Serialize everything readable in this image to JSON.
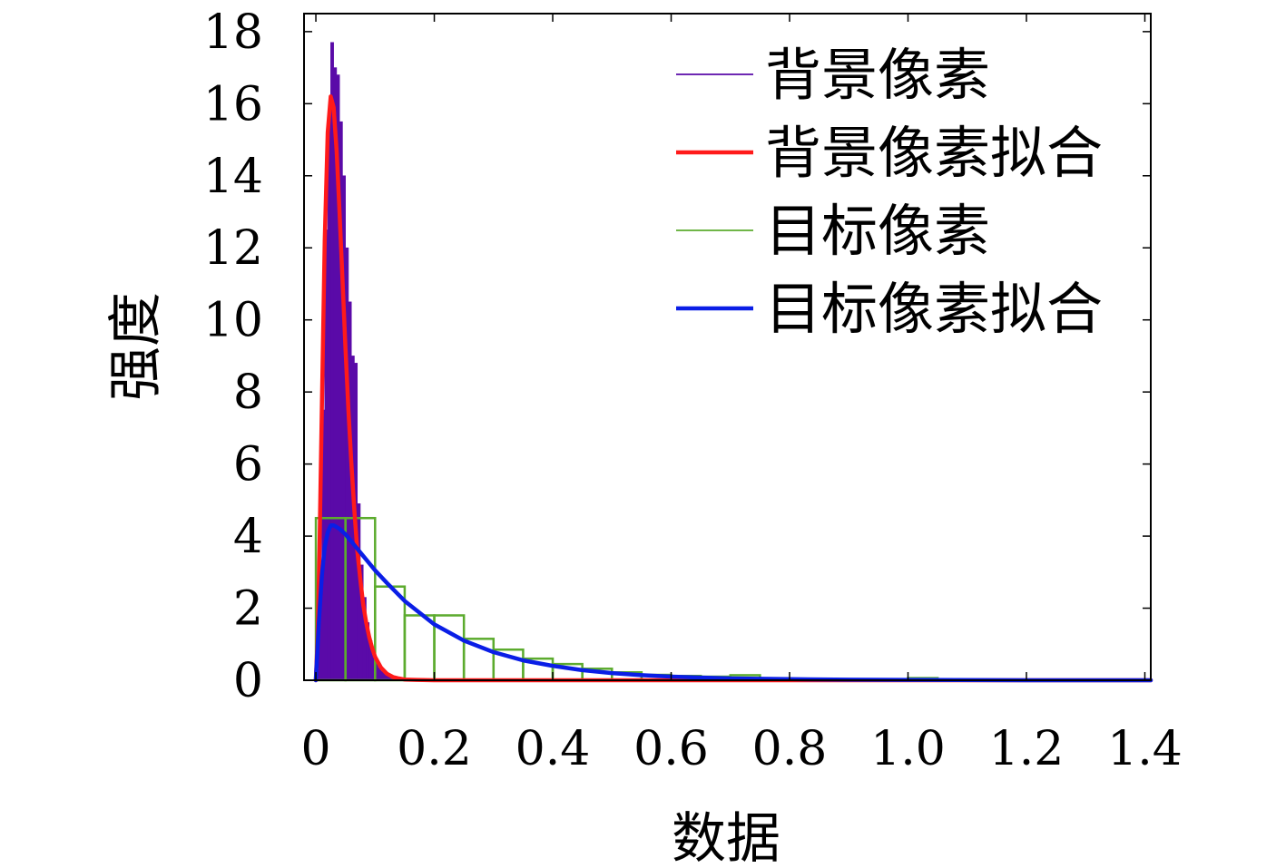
{
  "chart_data": {
    "type": "bar",
    "xlabel": "数据",
    "ylabel": "强度",
    "xlim": [
      -0.02,
      1.41
    ],
    "ylim": [
      0,
      18.5
    ],
    "xticks": [
      0,
      0.2,
      0.4,
      0.6,
      0.8,
      1.0,
      1.2,
      1.4
    ],
    "xtick_labels": [
      "0",
      "0.2",
      "0.4",
      "0.6",
      "0.8",
      "1.0",
      "1.2",
      "1.4"
    ],
    "yticks": [
      0,
      2,
      4,
      6,
      8,
      10,
      12,
      14,
      16,
      18
    ],
    "ytick_labels": [
      "0",
      "2",
      "4",
      "6",
      "8",
      "10",
      "12",
      "14",
      "16",
      "18"
    ],
    "grid": false,
    "legend_position": "top-right",
    "series": [
      {
        "name": "背景像素",
        "kind": "histogram",
        "color": "#5a0aa8",
        "bin_edges": [
          0.0,
          0.005,
          0.01,
          0.015,
          0.02,
          0.025,
          0.03,
          0.035,
          0.04,
          0.045,
          0.05,
          0.055,
          0.06,
          0.065,
          0.07,
          0.075,
          0.08,
          0.085,
          0.09,
          0.095,
          0.1,
          0.105,
          0.11,
          0.115,
          0.12,
          0.125,
          0.13,
          0.135,
          0.14,
          0.145,
          0.15
        ],
        "values": [
          0.3,
          2.5,
          7.5,
          12.5,
          15.5,
          17.7,
          17.0,
          16.8,
          15.5,
          14.0,
          12.0,
          10.5,
          9.0,
          8.8,
          4.9,
          3.2,
          2.3,
          1.6,
          1.1,
          0.7,
          0.5,
          0.35,
          0.25,
          0.18,
          0.12,
          0.08,
          0.05,
          0.03,
          0.02,
          0.01
        ]
      },
      {
        "name": "背景像素拟合",
        "kind": "line",
        "color": "#ff1a1a",
        "x": [
          0.0,
          0.003,
          0.006,
          0.01,
          0.015,
          0.02,
          0.025,
          0.03,
          0.035,
          0.04,
          0.045,
          0.05,
          0.055,
          0.06,
          0.065,
          0.07,
          0.075,
          0.08,
          0.085,
          0.09,
          0.095,
          0.1,
          0.11,
          0.12,
          0.13,
          0.14,
          0.15,
          0.17,
          0.2,
          0.3,
          0.5,
          0.8,
          1.1,
          1.41
        ],
        "y": [
          0.0,
          1.2,
          3.6,
          7.5,
          12.2,
          15.2,
          16.2,
          15.9,
          14.7,
          13.0,
          11.1,
          9.2,
          7.5,
          6.0,
          4.7,
          3.6,
          2.8,
          2.1,
          1.6,
          1.2,
          0.9,
          0.65,
          0.35,
          0.18,
          0.09,
          0.05,
          0.02,
          0.01,
          0.0,
          0.0,
          0.0,
          0.0,
          0.0,
          0.0
        ]
      },
      {
        "name": "目标像素",
        "kind": "histogram",
        "color": "#5cab2e",
        "bin_edges": [
          0.0,
          0.05,
          0.1,
          0.15,
          0.2,
          0.25,
          0.3,
          0.35,
          0.4,
          0.45,
          0.5,
          0.55,
          0.6,
          0.65,
          0.7,
          0.75,
          0.8,
          0.85,
          0.9,
          0.95,
          1.0,
          1.05,
          1.1,
          1.15,
          1.2,
          1.25,
          1.3,
          1.35,
          1.4
        ],
        "values": [
          4.5,
          4.5,
          2.6,
          1.8,
          1.8,
          1.15,
          0.85,
          0.6,
          0.45,
          0.32,
          0.22,
          0.15,
          0.12,
          0.1,
          0.14,
          0.04,
          0.03,
          0.02,
          0.02,
          0.01,
          0.06,
          0.01,
          0.01,
          0.0,
          0.0,
          0.0,
          0.0,
          0.0
        ]
      },
      {
        "name": "目标像素拟合",
        "kind": "line",
        "color": "#0a1ee6",
        "x": [
          0.0,
          0.005,
          0.01,
          0.015,
          0.02,
          0.025,
          0.03,
          0.035,
          0.04,
          0.05,
          0.06,
          0.07,
          0.08,
          0.1,
          0.12,
          0.15,
          0.2,
          0.25,
          0.3,
          0.35,
          0.4,
          0.45,
          0.5,
          0.55,
          0.6,
          0.7,
          0.8,
          0.9,
          1.0,
          1.2,
          1.41
        ],
        "y": [
          0.0,
          1.6,
          2.9,
          3.7,
          4.1,
          4.3,
          4.3,
          4.25,
          4.2,
          4.05,
          3.85,
          3.65,
          3.45,
          3.05,
          2.7,
          2.2,
          1.55,
          1.1,
          0.78,
          0.55,
          0.4,
          0.28,
          0.2,
          0.14,
          0.1,
          0.05,
          0.03,
          0.015,
          0.01,
          0.0,
          0.0
        ]
      }
    ]
  }
}
